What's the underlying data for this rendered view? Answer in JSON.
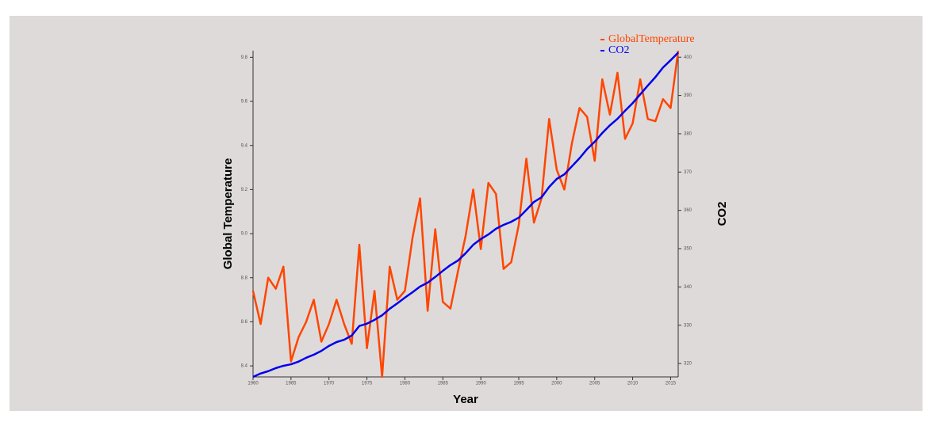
{
  "chart_data": {
    "type": "line",
    "x_label": "Year",
    "y_label": "Global Temperature",
    "y2_label": "CO2",
    "x": [
      1960,
      1961,
      1962,
      1963,
      1964,
      1965,
      1966,
      1967,
      1968,
      1969,
      1970,
      1971,
      1972,
      1973,
      1974,
      1975,
      1976,
      1977,
      1978,
      1979,
      1980,
      1981,
      1982,
      1983,
      1984,
      1985,
      1986,
      1987,
      1988,
      1989,
      1990,
      1991,
      1992,
      1993,
      1994,
      1995,
      1996,
      1997,
      1998,
      1999,
      2000,
      2001,
      2002,
      2003,
      2004,
      2005,
      2006,
      2007,
      2008,
      2009,
      2010,
      2011,
      2012,
      2013,
      2014,
      2015,
      2016
    ],
    "xlim": [
      1960,
      2016
    ],
    "xticks": [
      1960,
      1965,
      1970,
      1975,
      1980,
      1985,
      1990,
      1995,
      2000,
      2005,
      2010,
      2015
    ],
    "ylim": [
      8.35,
      9.83
    ],
    "yticks": [
      {
        "value": 8.4,
        "label": "8.4"
      },
      {
        "value": 8.6,
        "label": "8.6"
      },
      {
        "value": 8.8,
        "label": "8.8"
      },
      {
        "value": 9,
        "label": "9.0"
      },
      {
        "value": 9.2,
        "label": "9.2"
      },
      {
        "value": 9.4,
        "label": "9.4"
      },
      {
        "value": 9.6,
        "label": "9.6"
      },
      {
        "value": 9.8,
        "label": "9.8"
      }
    ],
    "y2lim": [
      316.5,
      401.7
    ],
    "y2ticks": [
      320,
      330,
      340,
      350,
      360,
      370,
      380,
      390,
      400
    ],
    "legend": "top-right",
    "series": [
      {
        "name": "GlobalTemperature",
        "color": "#ff4500",
        "axis": "y",
        "values": [
          8.74,
          8.59,
          8.8,
          8.75,
          8.85,
          8.42,
          8.53,
          8.6,
          8.7,
          8.51,
          8.59,
          8.7,
          8.59,
          8.5,
          8.95,
          8.48,
          8.74,
          8.35,
          8.85,
          8.7,
          8.74,
          8.98,
          9.16,
          8.65,
          9.02,
          8.69,
          8.66,
          8.83,
          8.99,
          9.2,
          8.93,
          9.23,
          9.18,
          8.84,
          8.87,
          9.04,
          9.34,
          9.05,
          9.16,
          9.52,
          9.29,
          9.2,
          9.41,
          9.57,
          9.53,
          9.33,
          9.7,
          9.54,
          9.73,
          9.43,
          9.5,
          9.7,
          9.52,
          9.51,
          9.61,
          9.57,
          9.83
        ]
      },
      {
        "name": "CO2",
        "color": "#0000ee",
        "axis": "y2",
        "values": [
          316.5,
          317.4,
          318.0,
          318.8,
          319.4,
          319.8,
          320.5,
          321.5,
          322.3,
          323.3,
          324.6,
          325.6,
          326.2,
          327.3,
          329.8,
          330.4,
          331.4,
          332.6,
          334.3,
          335.7,
          337.2,
          338.6,
          340.1,
          341.1,
          342.6,
          344.2,
          345.7,
          346.9,
          348.8,
          351.0,
          352.5,
          353.7,
          355.2,
          356.2,
          357.0,
          358.1,
          360.1,
          362.2,
          363.4,
          366.1,
          368.2,
          369.4,
          371.5,
          373.6,
          376.0,
          377.9,
          380.2,
          382.2,
          383.9,
          386.0,
          388.0,
          390.3,
          392.6,
          394.8,
          397.3,
          399.2,
          401.2
        ]
      }
    ]
  }
}
